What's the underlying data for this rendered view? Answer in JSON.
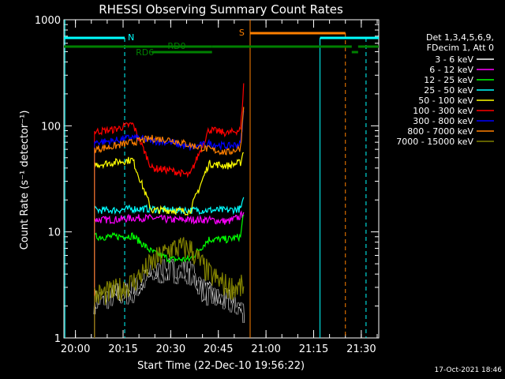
{
  "chart_data": {
    "type": "line",
    "title": "RHESSI Observing Summary Count Rates",
    "xlabel": "Start Time (22-Dec-10 19:56:22)",
    "ylabel": "Count Rate (s⁻¹ detector⁻¹)",
    "yscale": "log",
    "ylim": [
      1,
      1000
    ],
    "xlim": [
      "19:56:22",
      "21:35:30"
    ],
    "x_ticks": [
      "20:00",
      "20:15",
      "20:30",
      "20:45",
      "21:00",
      "21:15",
      "21:30"
    ],
    "y_ticks": [
      "1",
      "10",
      "100",
      "1000"
    ],
    "legend_header": [
      "Det 1,3,4,5,6,9,",
      "FDecim 1, Att 0"
    ],
    "series": [
      {
        "name": "3 - 6 keV",
        "color": "#000000",
        "x": [
          "20:06",
          "20:12",
          "20:18",
          "20:24",
          "20:30",
          "20:36",
          "20:42",
          "20:47",
          "20:50",
          "20:53"
        ],
        "y": [
          2.2,
          2.5,
          2.7,
          4,
          4.3,
          4.2,
          2.5,
          2.2,
          2.1,
          1.8
        ]
      },
      {
        "name": "6 - 12 keV",
        "color": "#ff00ff",
        "x": [
          "20:06",
          "20:12",
          "20:18",
          "20:24",
          "20:30",
          "20:36",
          "20:42",
          "20:48",
          "20:52",
          "20:53"
        ],
        "y": [
          13,
          13,
          13.5,
          13.5,
          13,
          13,
          13,
          12.5,
          14,
          16
        ]
      },
      {
        "name": "12 - 25 keV",
        "color": "#00ff00",
        "x": [
          "20:06",
          "20:12",
          "20:18",
          "20:24",
          "20:30",
          "20:36",
          "20:42",
          "20:48",
          "20:52",
          "20:53"
        ],
        "y": [
          9,
          9,
          9.2,
          6.5,
          5.5,
          5.5,
          8.5,
          8.5,
          9,
          16
        ]
      },
      {
        "name": "25 - 50 keV",
        "color": "#00ffff",
        "x": [
          "20:06",
          "20:12",
          "20:18",
          "20:24",
          "20:30",
          "20:36",
          "20:42",
          "20:48",
          "20:52",
          "20:53"
        ],
        "y": [
          16,
          16,
          16.5,
          16.5,
          16,
          16,
          16,
          16,
          16.5,
          20
        ]
      },
      {
        "name": "50 - 100 keV",
        "color": "#ffff00",
        "x": [
          "20:06",
          "20:12",
          "20:18",
          "20:24",
          "20:30",
          "20:36",
          "20:42",
          "20:48",
          "20:52",
          "20:53"
        ],
        "y": [
          43,
          45,
          48,
          16,
          16,
          15.5,
          44,
          42,
          45,
          60
        ]
      },
      {
        "name": "100 - 300 keV",
        "color": "#ff0000",
        "x": [
          "20:06",
          "20:12",
          "20:18",
          "20:24",
          "20:30",
          "20:36",
          "20:42",
          "20:48",
          "20:52",
          "20:53"
        ],
        "y": [
          88,
          92,
          104,
          40,
          38,
          34,
          92,
          85,
          92,
          250
        ]
      },
      {
        "name": "300 - 800 keV",
        "color": "#0000ff",
        "x": [
          "20:06",
          "20:12",
          "20:18",
          "20:24",
          "20:30",
          "20:36",
          "20:42",
          "20:48",
          "20:52",
          "20:53"
        ],
        "y": [
          70,
          72,
          78,
          72,
          70,
          62,
          68,
          64,
          68,
          140
        ]
      },
      {
        "name": "800 - 7000 keV",
        "color": "#ff8000",
        "x": [
          "20:06",
          "20:12",
          "20:18",
          "20:24",
          "20:30",
          "20:36",
          "20:42",
          "20:48",
          "20:52",
          "20:53"
        ],
        "y": [
          60,
          64,
          70,
          76,
          74,
          66,
          60,
          56,
          62,
          170
        ]
      },
      {
        "name": "7000 - 15000 keV",
        "color": "#808000",
        "x": [
          "20:06",
          "20:12",
          "20:18",
          "20:24",
          "20:30",
          "20:36",
          "20:42",
          "20:48",
          "20:52",
          "20:53"
        ],
        "y": [
          2.5,
          2.7,
          3.3,
          5,
          7,
          7,
          4,
          3,
          3,
          3
        ]
      }
    ],
    "annotations": [
      {
        "text": "N",
        "color": "#00ffff"
      },
      {
        "text": "S",
        "color": "#ff8000"
      },
      {
        "text": "RD0",
        "color": "#008000"
      },
      {
        "text": "RD6",
        "color": "#008000"
      }
    ],
    "timestamp": "17-Oct-2021 18:46"
  }
}
